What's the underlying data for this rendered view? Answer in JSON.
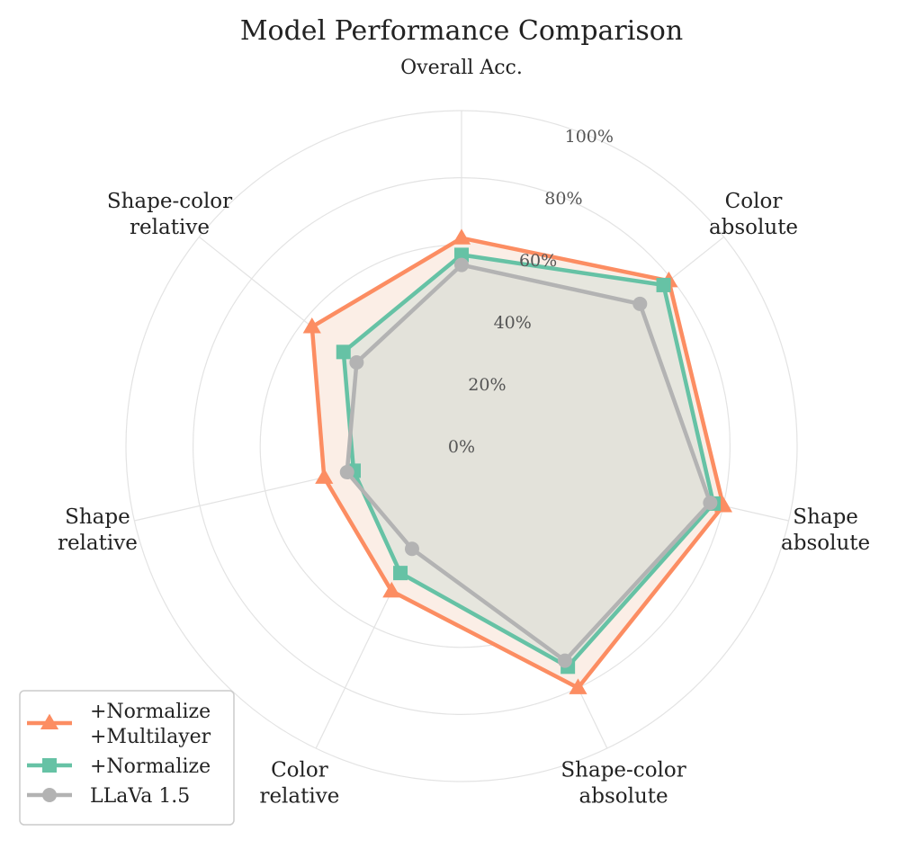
{
  "chart_data": {
    "type": "radar",
    "title": "Model Performance Comparison",
    "categories": [
      "Overall Acc.",
      "Color\nabsolute",
      "Shape\nabsolute",
      "Shape-color\nabsolute",
      "Color\nrelative",
      "Shape\nrelative",
      "Shape-color\nrelative"
    ],
    "radial_ticks": [
      "0%",
      "20%",
      "40%",
      "60%",
      "80%",
      "100%"
    ],
    "rlim": [
      0,
      100
    ],
    "grid": true,
    "legend_position": "bottom-left",
    "series": [
      {
        "name": "+Normalize\n+Multilayer",
        "marker": "triangle",
        "color": "#fc8d62",
        "values": [
          62,
          79,
          80,
          80,
          48,
          42,
          57
        ]
      },
      {
        "name": "+Normalize",
        "marker": "square",
        "color": "#66c2a5",
        "values": [
          57,
          77,
          77,
          73,
          42,
          33,
          45
        ]
      },
      {
        "name": "LLaVa 1.5",
        "marker": "circle",
        "color": "#b3b3b3",
        "values": [
          54,
          68,
          76,
          71,
          34,
          35,
          40
        ]
      }
    ]
  }
}
